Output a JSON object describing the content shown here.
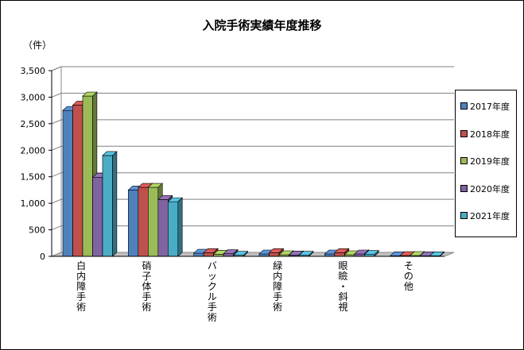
{
  "chart_data": {
    "type": "bar",
    "title": "入院手術実績年度推移",
    "ylabel": "（件）",
    "ylim": [
      0,
      3500
    ],
    "yticks": [
      "0",
      "500",
      "1,000",
      "1,500",
      "2,000",
      "2,500",
      "3,000",
      "3,500"
    ],
    "grid": true,
    "legend_position": "right",
    "categories": [
      "白内障手術",
      "硝子体手術",
      "バックル手術",
      "緑内障手術",
      "眼瞼・斜視",
      "その他"
    ],
    "series": [
      {
        "name": "2017年度",
        "color": "#4f81bd",
        "values": [
          2750,
          1250,
          60,
          45,
          45,
          10
        ]
      },
      {
        "name": "2018年度",
        "color": "#c0504d",
        "values": [
          2850,
          1300,
          70,
          70,
          70,
          15
        ]
      },
      {
        "name": "2019年度",
        "color": "#9bbb59",
        "values": [
          3020,
          1300,
          40,
          30,
          30,
          15
        ]
      },
      {
        "name": "2020年度",
        "color": "#8064a2",
        "values": [
          1490,
          1070,
          50,
          25,
          45,
          10
        ]
      },
      {
        "name": "2021年度",
        "color": "#4bacc6",
        "values": [
          1900,
          1030,
          20,
          20,
          35,
          10
        ]
      }
    ]
  }
}
